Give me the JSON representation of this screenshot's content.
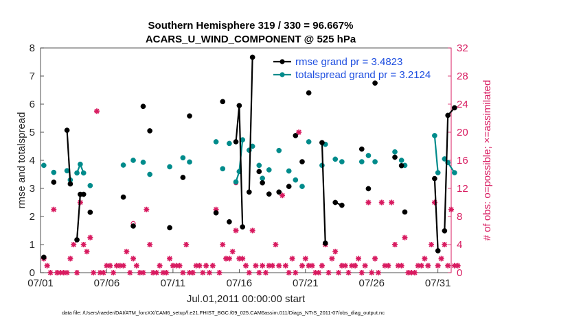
{
  "chart_data": {
    "type": "scatter",
    "title": [
      "Southern Hemisphere 319 / 330 = 96.667%",
      "ACARS_U_WIND_COMPONENT @ 525 hPa"
    ],
    "xlabel": "Jul.01,2011 00:00:00 start",
    "ylabel": "rmse and totalspread",
    "ylabel_right": "# of obs: o=possible; ×=assimilated",
    "footnote": "data file: /Users/raeder/DAI/ATM_forcXX/CAM6_setup/f.e21.FHIST_BGC.f09_025.CAM6assim.011/Diags_NTrS_2011-07/obs_diag_output.nc",
    "xlim": [
      0,
      31
    ],
    "ylim": [
      0,
      8
    ],
    "ylim_right": [
      0,
      32
    ],
    "x_ticks": [
      {
        "x": 0,
        "label": "07/01"
      },
      {
        "x": 5,
        "label": "07/06"
      },
      {
        "x": 10,
        "label": "07/11"
      },
      {
        "x": 15,
        "label": "07/16"
      },
      {
        "x": 20,
        "label": "07/21"
      },
      {
        "x": 25,
        "label": "07/26"
      },
      {
        "x": 30,
        "label": "07/31"
      }
    ],
    "y_ticks": [
      "0",
      "1",
      "2",
      "3",
      "4",
      "5",
      "6",
      "7",
      "8"
    ],
    "y_ticks_right": [
      "0",
      "4",
      "8",
      "12",
      "16",
      "20",
      "24",
      "28",
      "32"
    ],
    "legend": {
      "placement": "top-right",
      "entries": [
        "rmse grand pr = 3.4823",
        "totalspread grand pr = 3.2124"
      ]
    },
    "colors": {
      "rmse": "#000000",
      "totalspread": "#008b8b",
      "obs": "#d81b60",
      "legend_text": "#1f4fe0"
    },
    "series": [
      {
        "name": "rmse grand pr = 3.4823",
        "color": "#000000",
        "points": [
          [
            0.25,
            0.55
          ],
          [
            1.0,
            3.22
          ],
          [
            2.0,
            5.07
          ],
          [
            2.25,
            3.16
          ],
          [
            2.75,
            1.17
          ],
          [
            3.0,
            2.79
          ],
          [
            3.25,
            2.79
          ],
          [
            3.75,
            2.15
          ],
          [
            6.25,
            2.69
          ],
          [
            7.0,
            1.66
          ],
          [
            7.75,
            5.92
          ],
          [
            8.25,
            5.05
          ],
          [
            9.75,
            1.6
          ],
          [
            10.75,
            3.39
          ],
          [
            11.25,
            5.58
          ],
          [
            13.25,
            2.13
          ],
          [
            13.75,
            6.09
          ],
          [
            14.25,
            1.81
          ],
          [
            14.75,
            4.66
          ],
          [
            15.0,
            5.95
          ],
          [
            15.25,
            1.63
          ],
          [
            15.75,
            2.87
          ],
          [
            16.0,
            7.67
          ],
          [
            16.5,
            3.6
          ],
          [
            16.75,
            3.2
          ],
          [
            17.25,
            2.8
          ],
          [
            18.0,
            2.87
          ],
          [
            18.75,
            3.07
          ],
          [
            19.25,
            4.88
          ],
          [
            19.75,
            3.95
          ],
          [
            20.25,
            6.4
          ],
          [
            21.25,
            4.63
          ],
          [
            21.5,
            1.05
          ],
          [
            22.25,
            2.5
          ],
          [
            22.75,
            2.4
          ],
          [
            24.25,
            4.4
          ],
          [
            24.75,
            2.99
          ],
          [
            25.25,
            6.75
          ],
          [
            26.75,
            4.11
          ],
          [
            27.25,
            3.81
          ],
          [
            27.5,
            2.16
          ],
          [
            29.75,
            3.35
          ],
          [
            30.0,
            0.78
          ],
          [
            30.5,
            1.49
          ],
          [
            30.75,
            5.6
          ],
          [
            31.25,
            5.87
          ]
        ],
        "connected_segments": [
          [
            2.0,
            2.25
          ],
          [
            2.75,
            3.0,
            3.25
          ],
          [
            14.75,
            15.0,
            15.25
          ],
          [
            15.75,
            16.0
          ],
          [
            21.25,
            21.5
          ],
          [
            22.25,
            22.75
          ],
          [
            29.75,
            30.0
          ],
          [
            30.5,
            30.75,
            31.25
          ]
        ]
      },
      {
        "name": "totalspread grand pr = 3.2124",
        "color": "#008b8b",
        "points": [
          [
            0.25,
            3.82
          ],
          [
            1.0,
            3.57
          ],
          [
            2.0,
            3.63
          ],
          [
            2.25,
            3.3
          ],
          [
            2.75,
            3.55
          ],
          [
            3.0,
            3.86
          ],
          [
            3.25,
            3.55
          ],
          [
            3.75,
            3.1
          ],
          [
            6.25,
            3.83
          ],
          [
            7.0,
            4.0
          ],
          [
            7.75,
            3.93
          ],
          [
            8.25,
            3.5
          ],
          [
            9.75,
            3.77
          ],
          [
            10.75,
            4.09
          ],
          [
            11.25,
            3.94
          ],
          [
            13.25,
            4.66
          ],
          [
            13.75,
            3.7
          ],
          [
            14.25,
            4.6
          ],
          [
            14.75,
            3.23
          ],
          [
            15.0,
            3.6
          ],
          [
            15.25,
            4.73
          ],
          [
            15.75,
            4.36
          ],
          [
            16.0,
            4.5
          ],
          [
            16.5,
            3.82
          ],
          [
            16.75,
            3.36
          ],
          [
            17.25,
            3.66
          ],
          [
            18.0,
            4.35
          ],
          [
            18.75,
            3.62
          ],
          [
            19.25,
            3.3
          ],
          [
            19.75,
            3.07
          ],
          [
            20.25,
            4.66
          ],
          [
            21.25,
            3.82
          ],
          [
            21.5,
            4.57
          ],
          [
            22.25,
            4.04
          ],
          [
            22.75,
            3.95
          ],
          [
            24.25,
            3.95
          ],
          [
            24.75,
            4.17
          ],
          [
            25.25,
            3.95
          ],
          [
            26.75,
            4.3
          ],
          [
            27.25,
            4.0
          ],
          [
            27.5,
            3.82
          ],
          [
            29.75,
            4.88
          ],
          [
            30.0,
            3.56
          ],
          [
            30.5,
            4.05
          ],
          [
            30.75,
            3.92
          ],
          [
            31.25,
            3.56
          ]
        ],
        "connected_segments": [
          [
            2.75,
            3.0,
            3.25
          ],
          [
            14.75,
            15.0,
            15.25
          ],
          [
            29.75,
            30.0
          ],
          [
            30.5,
            30.75,
            31.25
          ]
        ]
      },
      {
        "name": "obs",
        "axis": "right",
        "color": "#d81b60",
        "points": [
          [
            0.25,
            2.0
          ],
          [
            0.5,
            1.0
          ],
          [
            0.75,
            0
          ],
          [
            1.0,
            9.0
          ],
          [
            1.25,
            0
          ],
          [
            1.5,
            0
          ],
          [
            1.75,
            0
          ],
          [
            2.0,
            0
          ],
          [
            2.25,
            2.0
          ],
          [
            2.5,
            4.0
          ],
          [
            2.75,
            0
          ],
          [
            3.0,
            10.0
          ],
          [
            3.25,
            4.0
          ],
          [
            3.5,
            3.0
          ],
          [
            3.75,
            5.0
          ],
          [
            4.0,
            0
          ],
          [
            4.25,
            23.0
          ],
          [
            4.5,
            0
          ],
          [
            4.75,
            0
          ],
          [
            5.0,
            1.0
          ],
          [
            5.25,
            1.0
          ],
          [
            5.5,
            0
          ],
          [
            5.75,
            1.0
          ],
          [
            6.0,
            1.0
          ],
          [
            6.25,
            1.0
          ],
          [
            6.5,
            3.0
          ],
          [
            6.75,
            0
          ],
          [
            7.0,
            2.0
          ],
          [
            7.25,
            1.0
          ],
          [
            7.5,
            0
          ],
          [
            7.75,
            0
          ],
          [
            8.0,
            9.0
          ],
          [
            8.25,
            4.0
          ],
          [
            8.5,
            0
          ],
          [
            8.75,
            0
          ],
          [
            9.0,
            1.0
          ],
          [
            9.25,
            0
          ],
          [
            9.5,
            0
          ],
          [
            9.75,
            2.0
          ],
          [
            10.0,
            1.0
          ],
          [
            10.25,
            1.0
          ],
          [
            10.5,
            1.0
          ],
          [
            10.75,
            0
          ],
          [
            11.0,
            4.0
          ],
          [
            11.25,
            0
          ],
          [
            11.5,
            0
          ],
          [
            11.75,
            1.0
          ],
          [
            12.0,
            1.0
          ],
          [
            12.25,
            0
          ],
          [
            12.5,
            1.0
          ],
          [
            12.75,
            0
          ],
          [
            13.0,
            1.0
          ],
          [
            13.25,
            9.0
          ],
          [
            13.5,
            0
          ],
          [
            13.75,
            4.0
          ],
          [
            14.0,
            2.0
          ],
          [
            14.25,
            2.0
          ],
          [
            14.5,
            3.0
          ],
          [
            14.75,
            6.0
          ],
          [
            15.0,
            2.0
          ],
          [
            15.25,
            2.0
          ],
          [
            15.5,
            1.0
          ],
          [
            15.75,
            0
          ],
          [
            16.0,
            6.0
          ],
          [
            16.25,
            1.0
          ],
          [
            16.5,
            0
          ],
          [
            16.75,
            1.0
          ],
          [
            17.0,
            0
          ],
          [
            17.25,
            1.0
          ],
          [
            17.5,
            1.0
          ],
          [
            17.75,
            4.0
          ],
          [
            18.0,
            1.0
          ],
          [
            18.25,
            11.0
          ],
          [
            18.5,
            1.0
          ],
          [
            18.75,
            0
          ],
          [
            19.0,
            2.0
          ],
          [
            19.25,
            0
          ],
          [
            19.5,
            20.0
          ],
          [
            19.75,
            1.0
          ],
          [
            20.0,
            2.0
          ],
          [
            20.25,
            1.0
          ],
          [
            20.5,
            1.0
          ],
          [
            20.75,
            0
          ],
          [
            21.0,
            0
          ],
          [
            21.25,
            1.0
          ],
          [
            21.5,
            4.0
          ],
          [
            21.75,
            0
          ],
          [
            22.0,
            2.0
          ],
          [
            22.25,
            3.0
          ],
          [
            22.5,
            0
          ],
          [
            22.75,
            1.0
          ],
          [
            23.0,
            1.0
          ],
          [
            23.25,
            0
          ],
          [
            23.5,
            1.0
          ],
          [
            23.75,
            1.0
          ],
          [
            24.0,
            2.0
          ],
          [
            24.25,
            0
          ],
          [
            24.5,
            1.0
          ],
          [
            24.75,
            10.0
          ],
          [
            25.0,
            0
          ],
          [
            25.25,
            2.0
          ],
          [
            25.5,
            0
          ],
          [
            25.75,
            10.0
          ],
          [
            26.0,
            1.0
          ],
          [
            26.25,
            1.0
          ],
          [
            26.5,
            10.0
          ],
          [
            26.75,
            4.0
          ],
          [
            27.0,
            1.0
          ],
          [
            27.25,
            1.0
          ],
          [
            27.5,
            5.0
          ],
          [
            27.75,
            0
          ],
          [
            28.0,
            0
          ],
          [
            28.25,
            0
          ],
          [
            28.5,
            1.0
          ],
          [
            28.75,
            1.0
          ],
          [
            29.0,
            2.0
          ],
          [
            29.25,
            1.0
          ],
          [
            29.5,
            4.0
          ],
          [
            29.75,
            10.0
          ],
          [
            30.0,
            1.0
          ],
          [
            30.25,
            2.0
          ],
          [
            30.5,
            4.0
          ],
          [
            30.75,
            1.0
          ],
          [
            31.0,
            9.0
          ],
          [
            31.25,
            1.0
          ],
          [
            31.5,
            1.0
          ]
        ],
        "possible_only_points": [
          [
            7.0,
            7.0
          ],
          [
            14.75,
            12.8
          ]
        ]
      }
    ]
  }
}
